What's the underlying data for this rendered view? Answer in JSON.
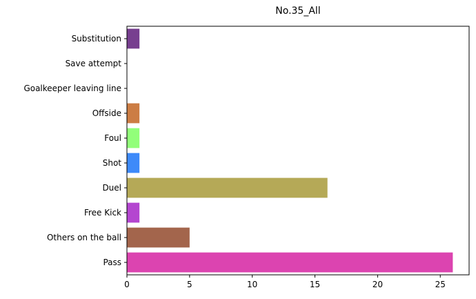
{
  "chart_data": {
    "type": "bar",
    "orientation": "horizontal",
    "title": "No.35_All",
    "xlabel": "",
    "ylabel": "",
    "categories": [
      "Pass",
      "Others on the ball",
      "Free Kick",
      "Duel",
      "Shot",
      "Foul",
      "Offside",
      "Goalkeeper leaving line",
      "Save attempt",
      "Substitution"
    ],
    "values": [
      26,
      5,
      1,
      16,
      1,
      1,
      1,
      0,
      0,
      1
    ],
    "colors": [
      "#dc44b0",
      "#a3654c",
      "#b446d0",
      "#b5a957",
      "#3e8af9",
      "#92ff7a",
      "#cc7d44",
      "#000000",
      "#000000",
      "#773f8f"
    ],
    "xlim": [
      0,
      27.3
    ],
    "xticks": [
      0,
      5,
      10,
      15,
      20,
      25
    ],
    "grid": false
  }
}
